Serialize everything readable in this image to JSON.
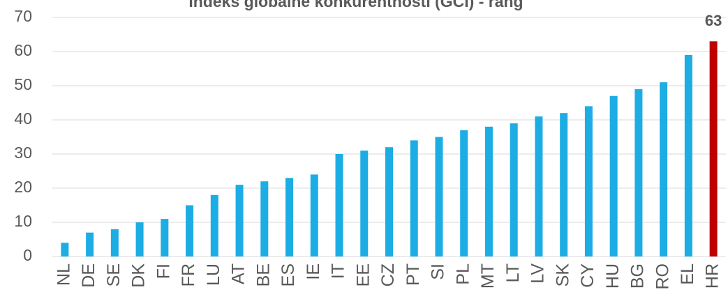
{
  "chart_data": {
    "type": "bar",
    "title": "Indeks globalne konkurentnosti (GCI) - rang",
    "categories": [
      "NL",
      "DE",
      "SE",
      "DK",
      "FI",
      "FR",
      "LU",
      "AT",
      "BE",
      "ES",
      "IE",
      "IT",
      "EE",
      "CZ",
      "PT",
      "SI",
      "PL",
      "MT",
      "LT",
      "LV",
      "SK",
      "CY",
      "HU",
      "BG",
      "RO",
      "EL",
      "HR"
    ],
    "values": [
      4,
      7,
      8,
      10,
      11,
      15,
      18,
      21,
      22,
      23,
      24,
      30,
      31,
      32,
      34,
      35,
      37,
      38,
      39,
      41,
      42,
      44,
      47,
      49,
      51,
      59,
      63
    ],
    "colors": [
      "#1cade4",
      "#1cade4",
      "#1cade4",
      "#1cade4",
      "#1cade4",
      "#1cade4",
      "#1cade4",
      "#1cade4",
      "#1cade4",
      "#1cade4",
      "#1cade4",
      "#1cade4",
      "#1cade4",
      "#1cade4",
      "#1cade4",
      "#1cade4",
      "#1cade4",
      "#1cade4",
      "#1cade4",
      "#1cade4",
      "#1cade4",
      "#1cade4",
      "#1cade4",
      "#1cade4",
      "#1cade4",
      "#1cade4",
      "#c00000"
    ],
    "labeled": [
      "HR"
    ],
    "ylim": [
      0,
      70
    ],
    "yticks": [
      0,
      10,
      20,
      30,
      40,
      50,
      60,
      70
    ],
    "grid": true
  }
}
